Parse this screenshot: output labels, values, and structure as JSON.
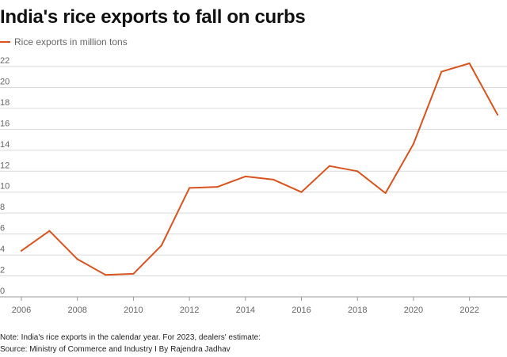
{
  "title": "India's rice exports to fall on curbs",
  "footer": {
    "note": "Note: India's rice exports in the calendar year. For 2023, dealers' estimate:",
    "source": "Source: Ministry of Commerce and Industry I By Rajendra Jadhav"
  },
  "colors": {
    "line": "#d9531e",
    "grid": "#d9d9d9",
    "axis": "#666666"
  },
  "chart_data": {
    "type": "line",
    "title": "India's rice exports to fall on curbs",
    "xlabel": "",
    "ylabel": "",
    "xlim": [
      2006,
      2023
    ],
    "ylim": [
      0,
      22
    ],
    "x_ticks": [
      "2006",
      "2008",
      "2010",
      "2012",
      "2014",
      "2016",
      "2018",
      "2020",
      "2022"
    ],
    "y_ticks": [
      "0",
      "2",
      "4",
      "6",
      "8",
      "10",
      "12",
      "14",
      "16",
      "18",
      "20",
      "22"
    ],
    "grid": "horizontal",
    "legend_position": "top-left",
    "series": [
      {
        "name": "Rice exports in million tons",
        "x": [
          2006,
          2007,
          2008,
          2009,
          2010,
          2011,
          2012,
          2013,
          2014,
          2015,
          2016,
          2017,
          2018,
          2019,
          2020,
          2021,
          2022,
          2023
        ],
        "values": [
          4.4,
          6.3,
          3.6,
          2.1,
          2.2,
          4.9,
          10.4,
          10.5,
          11.5,
          11.2,
          10.0,
          12.5,
          12.0,
          9.9,
          14.6,
          21.5,
          22.3,
          17.4
        ]
      }
    ]
  }
}
